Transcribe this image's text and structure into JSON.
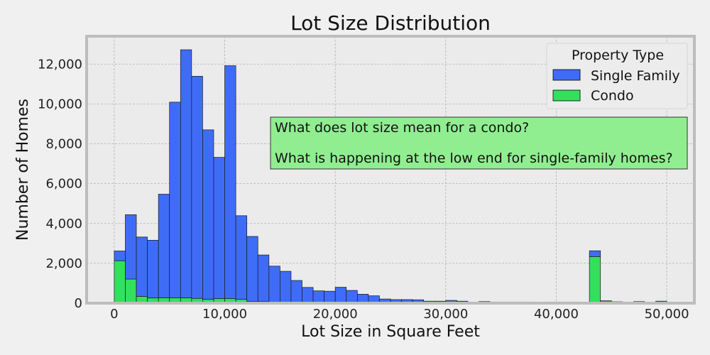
{
  "chart_data": {
    "type": "bar",
    "subtype": "stacked-histogram",
    "title": "Lot Size Distribution",
    "xlabel": "Lot Size in Square Feet",
    "ylabel": "Number of Homes",
    "xlim": [
      -2500,
      52500
    ],
    "ylim": [
      0,
      13400
    ],
    "x_ticks": [
      0,
      10000,
      20000,
      30000,
      40000,
      50000
    ],
    "x_tick_labels": [
      "0",
      "10,000",
      "20,000",
      "30,000",
      "40,000",
      "50,000"
    ],
    "y_ticks": [
      0,
      2000,
      4000,
      6000,
      8000,
      10000,
      12000
    ],
    "y_tick_labels": [
      "0",
      "2,000",
      "4,000",
      "6,000",
      "8,000",
      "10,000",
      "12,000"
    ],
    "bin_start": 0,
    "bin_width": 1000,
    "grid": true,
    "legend_title": "Property Type",
    "legend_position": "top-right",
    "series": [
      {
        "name": "Condo",
        "color": "#33e05c",
        "values": [
          2130,
          1210,
          340,
          260,
          270,
          270,
          270,
          240,
          200,
          230,
          230,
          200,
          80,
          80,
          60,
          40,
          30,
          20,
          20,
          20,
          20,
          20,
          10,
          10,
          10,
          10,
          10,
          10,
          10,
          10,
          10,
          10,
          10,
          10,
          10,
          10,
          10,
          10,
          10,
          10,
          10,
          10,
          10,
          2340,
          20,
          10,
          10,
          10,
          10,
          10
        ]
      },
      {
        "name": "Single Family",
        "color": "#3f6cf7",
        "values": [
          490,
          3230,
          2980,
          2900,
          5200,
          9820,
          12450,
          11150,
          8500,
          7090,
          11690,
          4190,
          3270,
          2340,
          1800,
          1560,
          1110,
          770,
          600,
          580,
          780,
          620,
          440,
          360,
          200,
          170,
          170,
          160,
          90,
          90,
          130,
          90,
          40,
          70,
          50,
          50,
          50,
          50,
          20,
          50,
          50,
          50,
          20,
          290,
          100,
          60,
          30,
          70,
          20,
          90
        ]
      }
    ],
    "annotations": [
      "What does lot size mean for a condo?",
      "What is happening at the low end for single-family homes?"
    ]
  }
}
